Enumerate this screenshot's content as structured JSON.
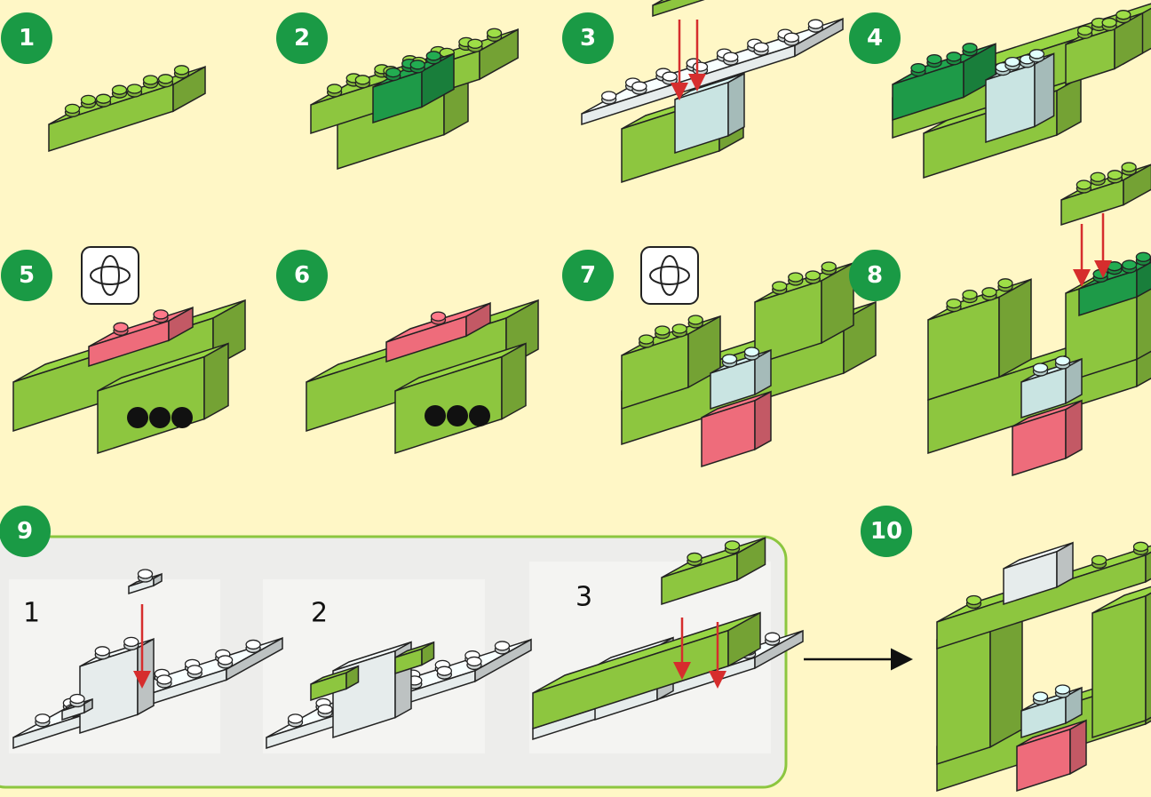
{
  "steps": [
    {
      "number": "1"
    },
    {
      "number": "2"
    },
    {
      "number": "3"
    },
    {
      "number": "4"
    },
    {
      "number": "5"
    },
    {
      "number": "6"
    },
    {
      "number": "7"
    },
    {
      "number": "8"
    },
    {
      "number": "9"
    },
    {
      "number": "10"
    }
  ],
  "substeps": [
    {
      "number": "1"
    },
    {
      "number": "2"
    },
    {
      "number": "3"
    }
  ]
}
